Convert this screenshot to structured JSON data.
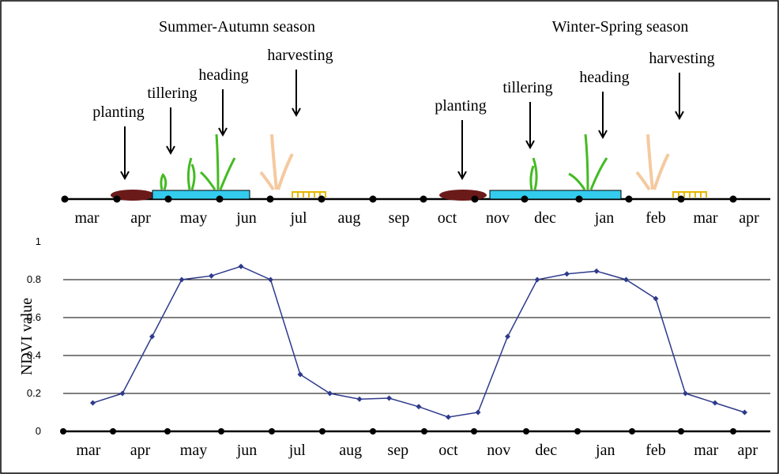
{
  "timeline": {
    "seasons": [
      "Summer-Autumn season",
      "Winter-Spring season"
    ],
    "stages": [
      "planting",
      "tillering",
      "heading",
      "harvesting",
      "planting",
      "tillering",
      "heading",
      "harvesting"
    ],
    "months": [
      "mar",
      "apr",
      "may",
      "jun",
      "jul",
      "aug",
      "sep",
      "oct",
      "nov",
      "dec",
      "jan",
      "feb",
      "mar",
      "apr"
    ]
  },
  "chart_data": {
    "type": "line",
    "y_label": "NDVI value",
    "x": [
      1,
      2,
      3,
      4,
      5,
      6,
      7,
      8,
      9,
      10,
      11,
      12,
      13,
      14,
      15,
      16,
      17,
      18,
      19,
      20,
      21,
      22,
      23
    ],
    "series": [
      {
        "color": "#2e3a8c",
        "values": [
          0.15,
          0.2,
          0.5,
          0.8,
          0.82,
          0.87,
          0.8,
          0.3,
          0.2,
          0.17,
          0.175,
          0.13,
          0.075,
          0.1,
          0.5,
          0.8,
          0.83,
          0.845,
          0.8,
          0.7,
          0.2,
          0.15,
          0.1
        ]
      }
    ],
    "xlim": [
      0,
      24
    ],
    "xticks": [
      {
        "value": 0.85,
        "label": "mar"
      },
      {
        "value": 2.6,
        "label": "apr"
      },
      {
        "value": 4.4,
        "label": "may"
      },
      {
        "value": 6.2,
        "label": "jun"
      },
      {
        "value": 7.9,
        "label": "jul"
      },
      {
        "value": 9.7,
        "label": "aug"
      },
      {
        "value": 11.3,
        "label": "sep"
      },
      {
        "value": 13,
        "label": "oct"
      },
      {
        "value": 14.7,
        "label": "nov"
      },
      {
        "value": 16.3,
        "label": "dec"
      },
      {
        "value": 18.3,
        "label": "jan"
      },
      {
        "value": 20,
        "label": "feb"
      },
      {
        "value": 21.7,
        "label": "mar"
      },
      {
        "value": 23.1,
        "label": "apr"
      }
    ],
    "ylim": [
      0,
      1
    ],
    "yticks": [
      0,
      0.2,
      0.4,
      0.6,
      0.8,
      1
    ],
    "grid": true
  }
}
